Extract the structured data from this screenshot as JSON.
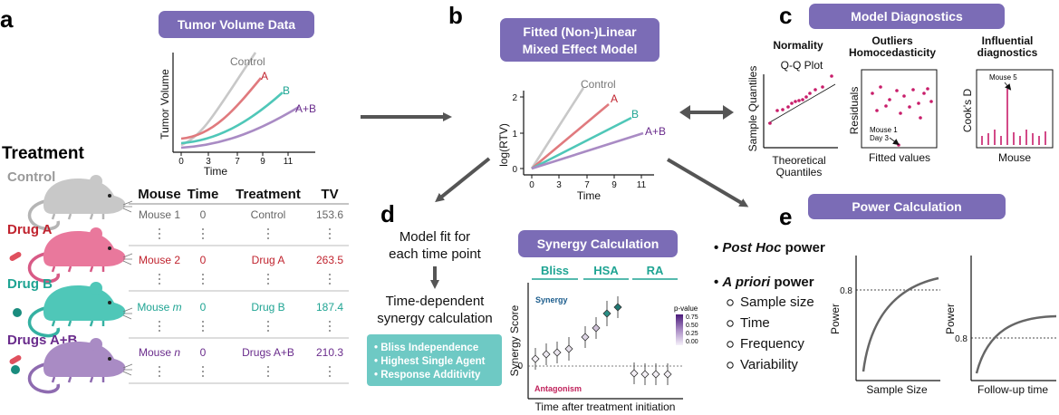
{
  "colors": {
    "control": "#c8c8c8",
    "drugA": "#e07a7e",
    "drugB": "#4fc7b8",
    "drugsAB": "#a98bc4",
    "drugA_text": "#c0232e",
    "drugB_text": "#1fa493",
    "drugsAB_text": "#6a2c8c",
    "pill": "#7b6cb6",
    "teal_box": "#6ec9c4",
    "diag_dot": "#c81d6a",
    "synergy_text": "#1b5c8c",
    "antagonism_text": "#c0235c"
  },
  "panel_a": {
    "letter": "a",
    "pill": "Tumor Volume Data",
    "chart": {
      "ylabel": "Tumor Volume",
      "xlabel": "Time",
      "xticks": [
        "0",
        "3",
        "7",
        "9",
        "11"
      ],
      "series": [
        {
          "name": "Control",
          "color": "control"
        },
        {
          "name": "A",
          "color": "drugA"
        },
        {
          "name": "B",
          "color": "drugB"
        },
        {
          "name": "A+B",
          "color": "drugsAB"
        }
      ]
    },
    "treatment_title": "Treatment",
    "groups": [
      "Control",
      "Drug A",
      "Drug B",
      "Drugs A+B"
    ],
    "table": {
      "headers": [
        "Mouse",
        "Time",
        "Treatment",
        "TV"
      ],
      "rows": [
        {
          "mouse": "Mouse 1",
          "italic": "",
          "time": "0",
          "treatment": "Control",
          "tv": "153.6",
          "color": "#666666"
        },
        {
          "mouse": "Mouse 2",
          "italic": "",
          "time": "0",
          "treatment": "Drug A",
          "tv": "263.5",
          "color": "#c0232e"
        },
        {
          "mouse": "Mouse ",
          "italic": "m",
          "time": "0",
          "treatment": "Drug B",
          "tv": "187.4",
          "color": "#1fa493"
        },
        {
          "mouse": "Mouse ",
          "italic": "n",
          "time": "0",
          "treatment": "Drugs A+B",
          "tv": "210.3",
          "color": "#6a2c8c"
        }
      ]
    }
  },
  "panel_b": {
    "letter": "b",
    "pill_line1": "Fitted (Non-)Linear",
    "pill_line2": "Mixed Effect Model",
    "chart": {
      "ylabel": "log(RTV)",
      "xlabel": "Time",
      "xticks": [
        "0",
        "3",
        "7",
        "9",
        "11"
      ],
      "yticks": [
        "0",
        "1",
        "2"
      ],
      "series": [
        {
          "name": "Control",
          "color": "control"
        },
        {
          "name": "A",
          "color": "drugA"
        },
        {
          "name": "B",
          "color": "drugB"
        },
        {
          "name": "A+B",
          "color": "drugsAB"
        }
      ]
    }
  },
  "panel_c": {
    "letter": "c",
    "pill": "Model Diagnostics",
    "normality": {
      "title": "Normality",
      "subtitle": "Q-Q Plot",
      "ylabel": "Sample Quantiles",
      "xlabel_line1": "Theoretical",
      "xlabel_line2": "Quantiles"
    },
    "outliers": {
      "title_line1": "Outliers",
      "title_line2": "Homocedasticity",
      "ylabel": "Residuals",
      "xlabel": "Fitted values",
      "annotation_line1": "Mouse 1",
      "annotation_line2": "Day 3"
    },
    "influential": {
      "title_line1": "Influential",
      "title_line2": "diagnostics",
      "ylabel": "Cook's D",
      "xlabel": "Mouse",
      "annotation": "Mouse 5"
    }
  },
  "panel_d": {
    "letter": "d",
    "text1_line1": "Model fit for",
    "text1_line2": "each time point",
    "text2_line1": "Time-dependent",
    "text2_line2": "synergy calculation",
    "methods": [
      "• Bliss Independence",
      "• Highest Single Agent",
      "• Response Additivity"
    ],
    "pill": "Synergy Calculation",
    "synergy_chart": {
      "method_headers": [
        "Bliss",
        "HSA",
        "RA"
      ],
      "ylabel": "Synergy Score",
      "xlabel": "Time after treatment initiation",
      "zero_label": "0",
      "synergy_label": "Synergy",
      "antagonism_label": "Antagonism",
      "legend_title": "p-value",
      "legend_ticks": [
        "0.75",
        "0.50",
        "0.25",
        "0.00"
      ]
    }
  },
  "panel_e": {
    "letter": "e",
    "pill": "Power Calculation",
    "post_hoc_italic": "Post Hoc",
    "post_hoc_rest": " power",
    "a_priori_italic": "A priori",
    "a_priori_rest": " power",
    "a_priori_items": [
      "Sample size",
      "Time",
      "Frequency",
      "Variability"
    ],
    "chart1": {
      "ylabel": "Power",
      "xlabel": "Sample Size",
      "threshold_label": "0.8"
    },
    "chart2": {
      "ylabel": "Power",
      "xlabel": "Follow-up time",
      "threshold_label": "0.8"
    }
  }
}
